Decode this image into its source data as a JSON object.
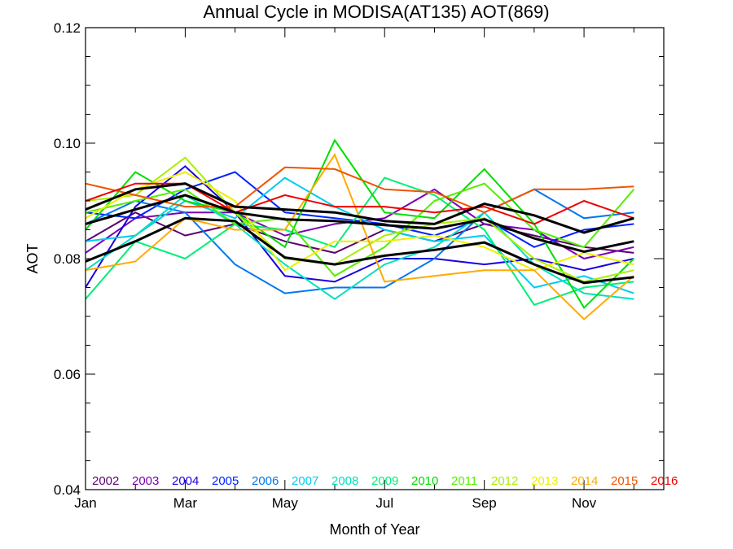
{
  "chart_data": {
    "type": "line",
    "title": "Annual Cycle in MODISA(AT135) AOT(869)",
    "xlabel": "Month of Year",
    "ylabel": "AOT",
    "xlim": [
      1,
      12.6
    ],
    "ylim": [
      0.04,
      0.12
    ],
    "x_ticks": [
      {
        "value": 1,
        "label": "Jan"
      },
      {
        "value": 3,
        "label": "Mar"
      },
      {
        "value": 5,
        "label": "May"
      },
      {
        "value": 7,
        "label": "Jul"
      },
      {
        "value": 9,
        "label": "Sep"
      },
      {
        "value": 11,
        "label": "Nov"
      }
    ],
    "y_ticks": [
      {
        "value": 0.04,
        "label": "0.04"
      },
      {
        "value": 0.06,
        "label": "0.06"
      },
      {
        "value": 0.08,
        "label": "0.08"
      },
      {
        "value": 0.1,
        "label": "0.10"
      },
      {
        "value": 0.12,
        "label": "0.12"
      }
    ],
    "x": [
      1,
      2,
      3,
      4,
      5,
      6,
      7,
      8,
      9,
      10,
      11,
      12
    ],
    "legend_position": "bottom",
    "series": [
      {
        "name": "2002",
        "color": "#5a0070",
        "values": [
          0.083,
          0.088,
          0.084,
          0.086,
          0.083,
          0.081,
          0.085,
          0.083,
          0.086,
          0.084,
          0.082,
          0.081
        ]
      },
      {
        "name": "2003",
        "color": "#7a00b0",
        "values": [
          0.081,
          0.087,
          0.088,
          0.088,
          0.084,
          0.086,
          0.087,
          0.092,
          0.086,
          0.085,
          0.08,
          0.082
        ]
      },
      {
        "name": "2004",
        "color": "#1a00dd",
        "values": [
          0.075,
          0.089,
          0.096,
          0.088,
          0.077,
          0.076,
          0.08,
          0.08,
          0.079,
          0.08,
          0.078,
          0.08
        ]
      },
      {
        "name": "2005",
        "color": "#0022ff",
        "values": [
          0.088,
          0.087,
          0.092,
          0.095,
          0.088,
          0.087,
          0.086,
          0.084,
          0.087,
          0.082,
          0.085,
          0.086
        ]
      },
      {
        "name": "2006",
        "color": "#0077ee",
        "values": [
          0.086,
          0.09,
          0.088,
          0.079,
          0.074,
          0.075,
          0.075,
          0.08,
          0.088,
          0.092,
          0.087,
          0.088
        ]
      },
      {
        "name": "2007",
        "color": "#00ccee",
        "values": [
          0.083,
          0.084,
          0.09,
          0.087,
          0.094,
          0.089,
          0.085,
          0.083,
          0.084,
          0.075,
          0.077,
          0.074
        ]
      },
      {
        "name": "2008",
        "color": "#00e0c0",
        "values": [
          0.078,
          0.084,
          0.091,
          0.086,
          0.079,
          0.073,
          0.079,
          0.082,
          0.088,
          0.079,
          0.074,
          0.073
        ]
      },
      {
        "name": "2009",
        "color": "#00ee77",
        "values": [
          0.073,
          0.083,
          0.08,
          0.086,
          0.085,
          0.082,
          0.094,
          0.091,
          0.085,
          0.072,
          0.075,
          0.076
        ]
      },
      {
        "name": "2010",
        "color": "#00dd00",
        "values": [
          0.085,
          0.095,
          0.09,
          0.088,
          0.082,
          0.1005,
          0.088,
          0.087,
          0.0955,
          0.086,
          0.0715,
          0.08
        ]
      },
      {
        "name": "2011",
        "color": "#55ee00",
        "values": [
          0.088,
          0.09,
          0.092,
          0.086,
          0.087,
          0.077,
          0.082,
          0.09,
          0.093,
          0.085,
          0.082,
          0.092
        ]
      },
      {
        "name": "2012",
        "color": "#aaee00",
        "values": [
          0.09,
          0.091,
          0.0975,
          0.088,
          0.08,
          0.079,
          0.084,
          0.086,
          0.087,
          0.08,
          0.076,
          0.078
        ]
      },
      {
        "name": "2013",
        "color": "#eeee00",
        "values": [
          0.087,
          0.092,
          0.095,
          0.09,
          0.078,
          0.083,
          0.083,
          0.084,
          0.082,
          0.078,
          0.081,
          0.079
        ]
      },
      {
        "name": "2014",
        "color": "#ffaa00",
        "values": [
          0.078,
          0.0795,
          0.087,
          0.085,
          0.085,
          0.098,
          0.076,
          0.077,
          0.078,
          0.078,
          0.0695,
          0.077
        ]
      },
      {
        "name": "2015",
        "color": "#ee5500",
        "values": [
          0.093,
          0.091,
          0.089,
          0.089,
          0.0958,
          0.0955,
          0.092,
          0.0915,
          0.088,
          0.092,
          0.092,
          0.0925
        ]
      },
      {
        "name": "2016",
        "color": "#ee0000",
        "values": [
          0.09,
          0.093,
          0.093,
          0.088,
          0.091,
          0.089,
          0.089,
          0.088,
          0.089,
          0.086,
          0.09,
          0.087
        ]
      }
    ],
    "mean_lines": [
      {
        "color": "#000000",
        "values": [
          0.0885,
          0.092,
          0.093,
          0.089,
          0.0885,
          0.088,
          0.0865,
          0.086,
          0.0895,
          0.0875,
          0.0845,
          0.087
        ]
      },
      {
        "color": "#000000",
        "values": [
          0.086,
          0.0885,
          0.091,
          0.088,
          0.0868,
          0.0865,
          0.0858,
          0.0852,
          0.0868,
          0.0835,
          0.0812,
          0.083
        ]
      },
      {
        "color": "#000000",
        "values": [
          0.0795,
          0.083,
          0.087,
          0.0865,
          0.0802,
          0.079,
          0.0805,
          0.0815,
          0.0828,
          0.079,
          0.0758,
          0.0768
        ]
      }
    ]
  }
}
